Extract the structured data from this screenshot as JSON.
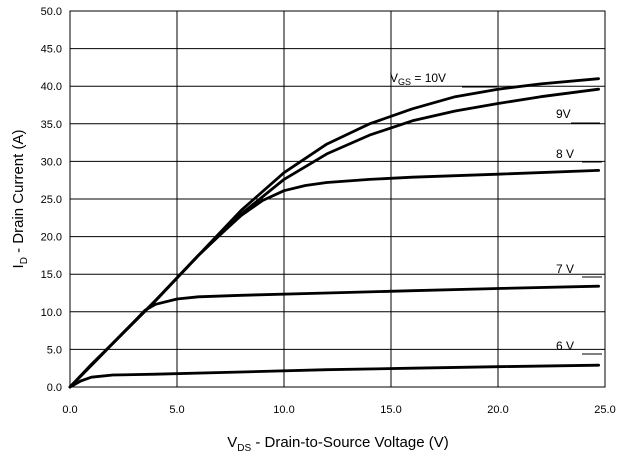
{
  "chart_data": {
    "type": "line",
    "xlabel": {
      "main": "V",
      "sub": "DS",
      "rest": " - Drain-to-Source Voltage (V)"
    },
    "ylabel": {
      "main": "I",
      "sub": "D",
      "rest": " - Drain Current (A)"
    },
    "xlim": [
      0,
      25
    ],
    "ylim": [
      0,
      50
    ],
    "xticks": [
      "0.0",
      "5.0",
      "10.0",
      "15.0",
      "20.0",
      "25.0"
    ],
    "yticks": [
      "0.0",
      "5.0",
      "10.0",
      "15.0",
      "20.0",
      "25.0",
      "30.0",
      "35.0",
      "40.0",
      "45.0",
      "50.0"
    ],
    "grid": true,
    "series": [
      {
        "label_main": "V",
        "label_sub": "GS",
        "label_rest": " = 10V",
        "x": [
          0,
          2,
          4,
          6,
          8,
          10,
          12,
          14,
          16,
          18,
          20,
          22,
          24.7
        ],
        "y": [
          0,
          5.8,
          11.5,
          17.5,
          23.5,
          28.5,
          32.3,
          35,
          37,
          38.6,
          39.6,
          40.3,
          41
        ]
      },
      {
        "label_main": "9V",
        "label_sub": "",
        "label_rest": "",
        "x": [
          0,
          2,
          4,
          6,
          8,
          10,
          12,
          14,
          16,
          18,
          20,
          22,
          24.7
        ],
        "y": [
          0,
          5.8,
          11.5,
          17.5,
          23,
          27.6,
          31,
          33.5,
          35.4,
          36.7,
          37.7,
          38.6,
          39.6
        ]
      },
      {
        "label_main": "8 V",
        "label_sub": "",
        "label_rest": "",
        "x": [
          0,
          2,
          4,
          5,
          6,
          7,
          8,
          9,
          10,
          11,
          12,
          14,
          16,
          20,
          24.7
        ],
        "y": [
          0,
          5.8,
          11.5,
          14.5,
          17.5,
          20.2,
          22.8,
          24.8,
          26.1,
          26.8,
          27.2,
          27.6,
          27.9,
          28.3,
          28.8
        ]
      },
      {
        "label_main": "7 V",
        "label_sub": "",
        "label_rest": "",
        "x": [
          0,
          1,
          2,
          3,
          3.5,
          4,
          5,
          6,
          8,
          12,
          16,
          20,
          24.7
        ],
        "y": [
          0,
          3,
          5.8,
          8.7,
          10.2,
          11,
          11.7,
          12,
          12.2,
          12.5,
          12.8,
          13.1,
          13.4
        ]
      },
      {
        "label_main": "6 V",
        "label_sub": "",
        "label_rest": "",
        "x": [
          0,
          0.5,
          1,
          2,
          4,
          8,
          12,
          16,
          20,
          24.7
        ],
        "y": [
          0,
          0.8,
          1.3,
          1.6,
          1.7,
          2,
          2.3,
          2.5,
          2.7,
          2.9
        ]
      }
    ]
  }
}
